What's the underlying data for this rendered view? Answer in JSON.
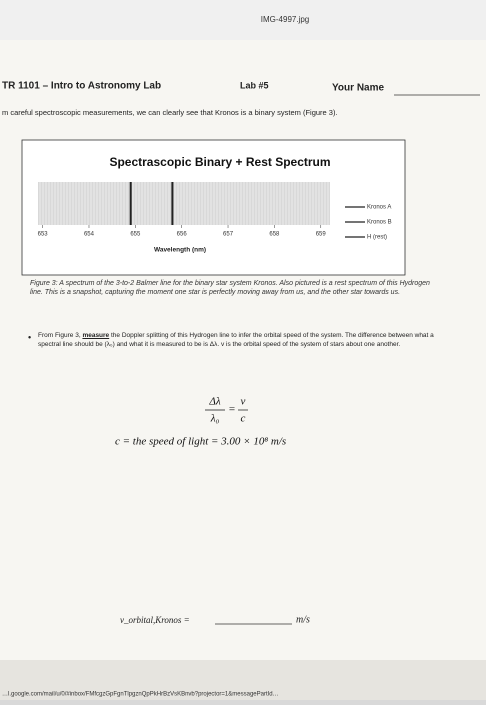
{
  "viewer": {
    "filename": "IMG-4997.jpg"
  },
  "header": {
    "course": "TR 1101 – Intro to Astronomy Lab",
    "lab": "Lab #5",
    "name_label": "Your Name"
  },
  "intro": "m careful spectroscopic measurements, we can clearly see that Kronos is a binary system (Figure 3).",
  "figure": {
    "title": "Spectrascopic Binary + Rest Spectrum",
    "xlabel": "Wavelength (nm)",
    "xlim": [
      652.9,
      659.2
    ],
    "xticks": [
      653,
      654,
      655,
      656,
      657,
      658,
      659
    ],
    "lines": [
      654.9,
      655.8
    ],
    "legend": [
      "Kronos A",
      "Kronos B",
      "H (rest)"
    ],
    "caption": "Figure 3: A spectrum of the 3-to-2 Balmer line for the binary star system Kronos. Also pictured is a rest spectrum of this Hydrogen line. This is a snapshot, capturing the moment one star is perfectly moving away from us, and the other star towards us."
  },
  "bullet": {
    "before": "From Figure 3, ",
    "bold": "measure",
    "after": " the Doppler splitting of this Hydrogen line to infer the orbital speed of the system. The difference between what a spectral line should be (λ₀) and what it is measured to be is Δλ. v is the orbital speed of the system of stars about one another."
  },
  "equation": {
    "num_left": "Δλ",
    "den_left": "λ₀",
    "equals": "=",
    "num_right": "v",
    "den_right": "c",
    "constant": "c = the speed of light = 3.00 × 10⁸ m/s"
  },
  "answer": {
    "label": "v_orbital,Kronos =",
    "unit": "m/s"
  },
  "footer": {
    "url": "…l.google.com/mail/u/0/#inbox/FMfcgzGpFgnTlpgznQpPkHrBzVsKBnvb?projector=1&messagePartId…"
  }
}
